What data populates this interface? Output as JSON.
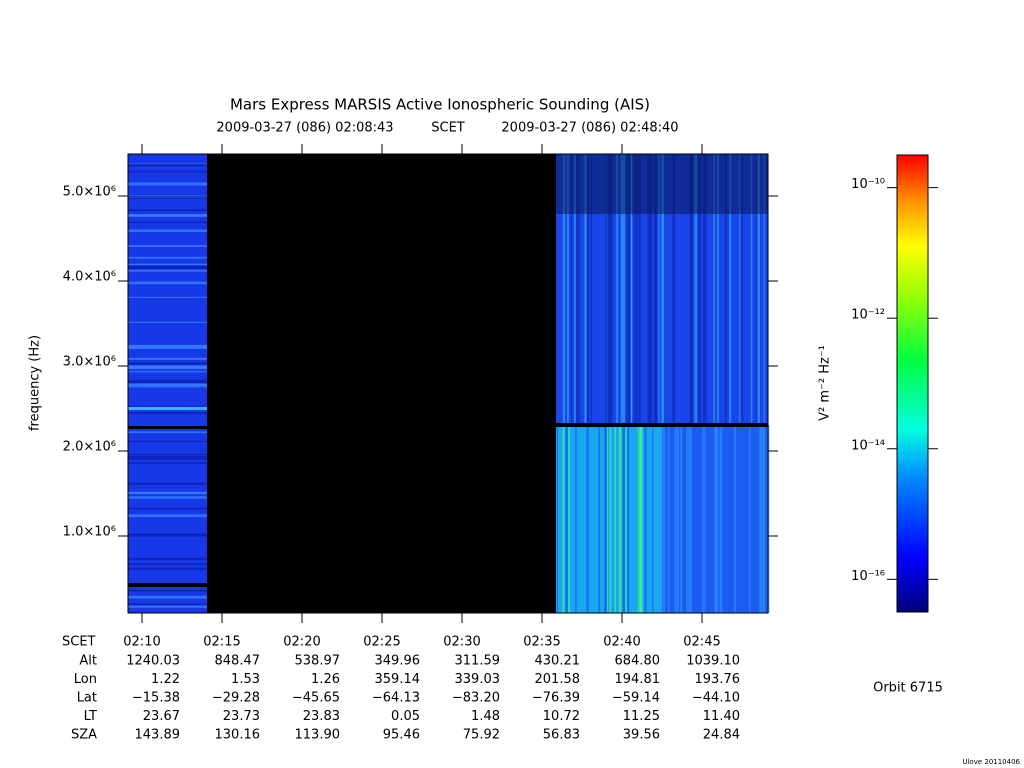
{
  "chart_data": {
    "type": "spectrogram",
    "title": "Mars Express MARSIS Active Ionospheric Sounding (AIS)",
    "start_time": "2009-03-27 (086) 02:08:43",
    "time_system": "SCET",
    "end_time": "2009-03-27 (086) 02:48:40",
    "y_label": "frequency (Hz)",
    "ylim": [
      94000,
      5494000
    ],
    "yticks": [
      {
        "value": 1000000,
        "label": "1.0×10⁶"
      },
      {
        "value": 2000000,
        "label": "2.0×10⁶"
      },
      {
        "value": 3000000,
        "label": "3.0×10⁶"
      },
      {
        "value": 4000000,
        "label": "4.0×10⁶"
      },
      {
        "value": 5000000,
        "label": "5.0×10⁶"
      }
    ],
    "xlim": [
      9.125,
      49.125
    ],
    "xticks": [
      {
        "value": 10,
        "label": "02:10"
      },
      {
        "value": 15,
        "label": "02:15"
      },
      {
        "value": 20,
        "label": "02:20"
      },
      {
        "value": 25,
        "label": "02:25"
      },
      {
        "value": 30,
        "label": "02:30"
      },
      {
        "value": 35,
        "label": "02:35"
      },
      {
        "value": 40,
        "label": "02:40"
      },
      {
        "value": 45,
        "label": "02:45"
      }
    ],
    "x_label": "SCET",
    "ephemeris": [
      {
        "label": "Alt",
        "values": [
          "1240.03",
          "848.47",
          "538.97",
          "349.96",
          "311.59",
          "430.21",
          "684.80",
          "1039.10"
        ]
      },
      {
        "label": "Lon",
        "values": [
          "1.22",
          "1.53",
          "1.26",
          "359.14",
          "339.03",
          "201.58",
          "194.81",
          "193.76"
        ]
      },
      {
        "label": "Lat",
        "values": [
          "−15.38",
          "−29.28",
          "−45.65",
          "−64.13",
          "−83.20",
          "−76.39",
          "−59.14",
          "−44.10"
        ]
      },
      {
        "label": "LT",
        "values": [
          "23.67",
          "23.73",
          "23.83",
          "0.05",
          "1.48",
          "10.72",
          "11.25",
          "11.40"
        ]
      },
      {
        "label": "SZA",
        "values": [
          "143.89",
          "130.16",
          "113.90",
          "95.46",
          "75.92",
          "56.83",
          "39.56",
          "24.84"
        ]
      }
    ],
    "colorbar": {
      "label": "V² m⁻² Hz⁻¹",
      "log": true,
      "lim": [
        3.16e-17,
        3.16e-10
      ],
      "ticks": [
        {
          "value": 1e-10,
          "label": "10⁻¹⁰"
        },
        {
          "value": 1e-12,
          "label": "10⁻¹²"
        },
        {
          "value": 1e-14,
          "label": "10⁻¹⁴"
        },
        {
          "value": 1e-16,
          "label": "10⁻¹⁶"
        }
      ]
    },
    "orbit": "Orbit 6715",
    "footer": "Ulove 20110406"
  }
}
